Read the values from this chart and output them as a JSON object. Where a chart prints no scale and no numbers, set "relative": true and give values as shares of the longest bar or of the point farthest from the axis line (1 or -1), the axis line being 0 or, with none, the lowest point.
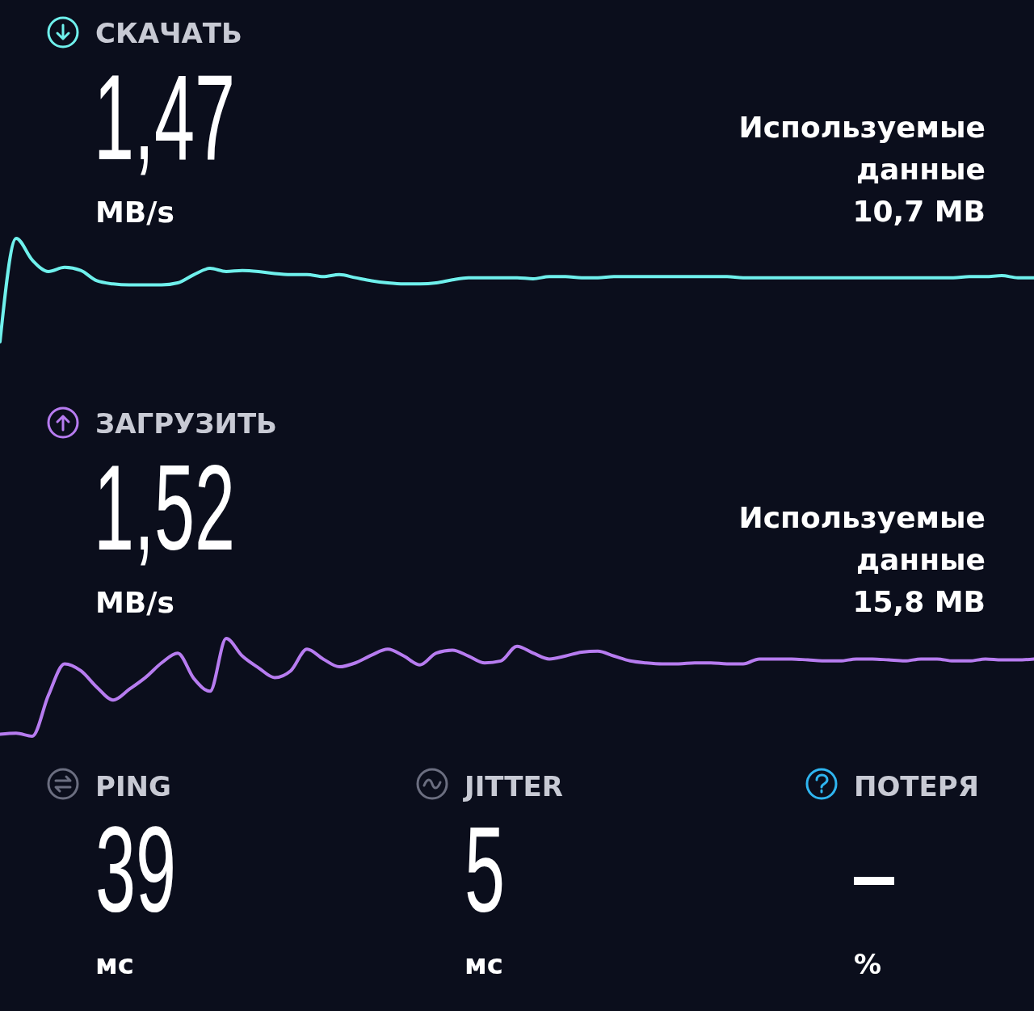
{
  "chart_data": [
    {
      "type": "line",
      "title": "СКАЧАТЬ",
      "relative": true,
      "annotations": [
        "1,47",
        "MB/s",
        "Используемые данные",
        "10,7 MB"
      ],
      "categories": [
        null,
        null,
        null,
        null,
        null,
        null,
        null,
        null,
        null,
        null,
        null,
        null,
        null,
        null,
        null,
        null,
        null,
        null,
        null,
        null,
        null,
        null,
        null,
        null,
        null,
        null,
        null,
        null,
        null,
        null,
        null,
        null,
        null,
        null,
        null,
        null,
        null,
        null,
        null,
        null,
        null,
        null,
        null,
        null,
        null,
        null,
        null,
        null,
        null,
        null,
        null,
        null,
        null,
        null,
        null,
        null,
        null,
        null,
        null,
        null,
        null,
        null,
        null,
        null,
        null
      ],
      "series": [
        {
          "color": "#6ff0ec",
          "values": [
            0,
            1,
            0.79,
            0.68,
            0.72,
            0.69,
            0.59,
            0.56,
            0.55,
            0.55,
            0.55,
            0.57,
            0.65,
            0.71,
            0.68,
            0.69,
            0.68,
            0.66,
            0.65,
            0.65,
            0.63,
            0.65,
            0.62,
            0.59,
            0.57,
            0.56,
            0.56,
            0.57,
            0.6,
            0.62,
            0.62,
            0.62,
            0.62,
            0.61,
            0.63,
            0.63,
            0.62,
            0.62,
            0.63,
            0.63,
            0.63,
            0.63,
            0.63,
            0.63,
            0.63,
            0.63,
            0.62,
            0.62,
            0.62,
            0.62,
            0.62,
            0.62,
            0.62,
            0.62,
            0.62,
            0.62,
            0.62,
            0.62,
            0.62,
            0.62,
            0.63,
            0.63,
            0.64,
            0.62,
            0.62
          ]
        }
      ]
    },
    {
      "type": "line",
      "title": "ЗАГРУЗИТЬ",
      "relative": true,
      "annotations": [
        "1,52",
        "MB/s",
        "Используемые данные",
        "15,8 MB"
      ],
      "categories": [
        null,
        null,
        null,
        null,
        null,
        null,
        null,
        null,
        null,
        null,
        null,
        null,
        null,
        null,
        null,
        null,
        null,
        null,
        null,
        null,
        null,
        null,
        null,
        null,
        null,
        null,
        null,
        null,
        null,
        null,
        null,
        null,
        null,
        null,
        null,
        null,
        null,
        null,
        null,
        null,
        null,
        null,
        null,
        null,
        null,
        null,
        null,
        null,
        null,
        null,
        null,
        null,
        null,
        null,
        null,
        null,
        null,
        null,
        null,
        null,
        null,
        null,
        null,
        null,
        null
      ],
      "series": [
        {
          "color": "#b77cf0",
          "values": [
            0.02,
            0.03,
            0,
            0.42,
            0.74,
            0.67,
            0.5,
            0.37,
            0.48,
            0.6,
            0.75,
            0.85,
            0.59,
            0.46,
            1,
            0.82,
            0.7,
            0.6,
            0.67,
            0.89,
            0.79,
            0.71,
            0.75,
            0.83,
            0.89,
            0.82,
            0.73,
            0.85,
            0.88,
            0.82,
            0.75,
            0.77,
            0.92,
            0.85,
            0.79,
            0.82,
            0.86,
            0.87,
            0.82,
            0.77,
            0.75,
            0.74,
            0.74,
            0.75,
            0.75,
            0.74,
            0.74,
            0.79,
            0.79,
            0.79,
            0.78,
            0.77,
            0.77,
            0.79,
            0.79,
            0.78,
            0.77,
            0.79,
            0.79,
            0.77,
            0.77,
            0.79,
            0.78,
            0.78,
            0.79
          ]
        }
      ]
    },
    {
      "type": "other",
      "annotations": [
        "PING",
        "39",
        "мс",
        "JITTER",
        "5",
        "мс",
        "ПОТЕРЯ",
        "–",
        "%"
      ]
    }
  ]
}
